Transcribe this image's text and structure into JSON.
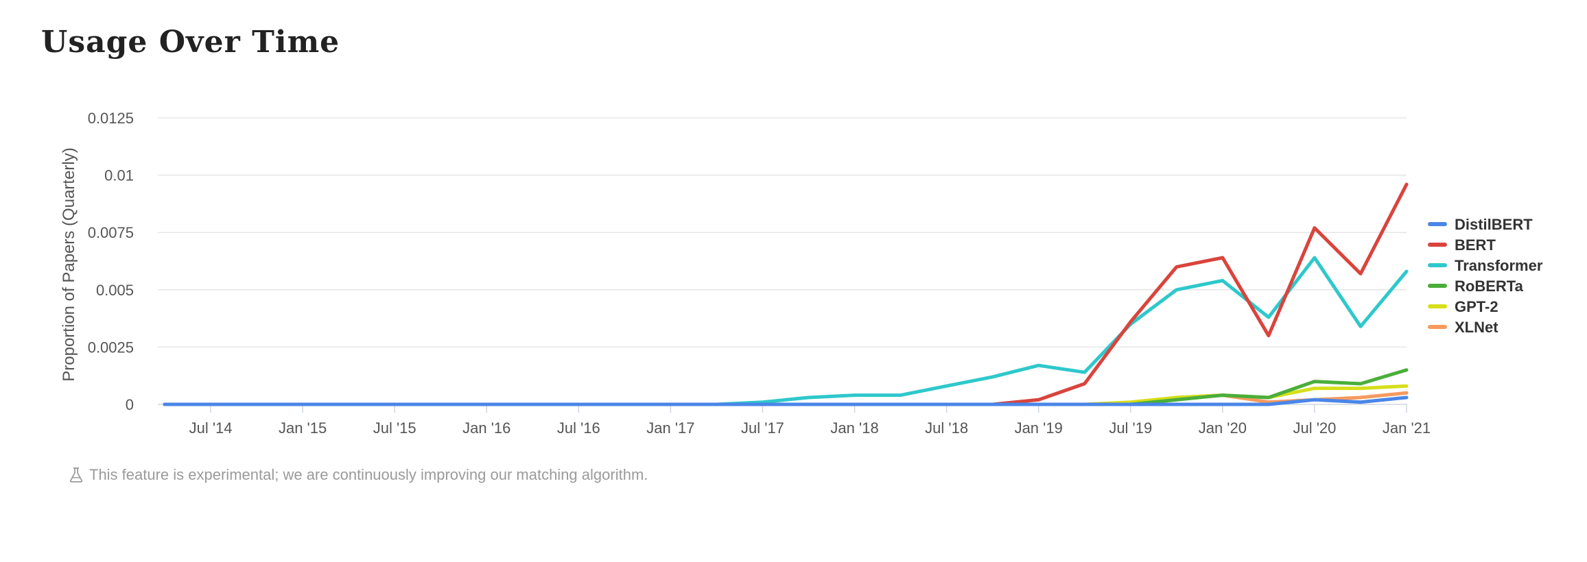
{
  "page": {
    "title": "Usage Over Time"
  },
  "footnote": {
    "text": "This feature is experimental; we are continuously improving our matching algorithm.",
    "icon": "flask-icon"
  },
  "chart_data": {
    "type": "line",
    "title": "",
    "xlabel": "",
    "ylabel": "Proportion of Papers (Quarterly)",
    "ylim": [
      0,
      0.0125
    ],
    "y_ticks": [
      0,
      0.0025,
      0.005,
      0.0075,
      0.01,
      0.0125
    ],
    "y_tick_labels": [
      "0",
      "0.0025",
      "0.005",
      "0.0075",
      "0.01",
      "0.0125"
    ],
    "x_tick_labels": [
      "Jul '14",
      "Jan '15",
      "Jul '15",
      "Jan '16",
      "Jul '16",
      "Jan '17",
      "Jul '17",
      "Jan '18",
      "Jul '18",
      "Jan '19",
      "Jul '19",
      "Jan '20",
      "Jul '20",
      "Jan '21"
    ],
    "grid": "horizontal",
    "legend_position": "right",
    "x": [
      "2014-04",
      "2014-07",
      "2014-10",
      "2015-01",
      "2015-04",
      "2015-07",
      "2015-10",
      "2016-01",
      "2016-04",
      "2016-07",
      "2016-10",
      "2017-01",
      "2017-04",
      "2017-07",
      "2017-10",
      "2018-01",
      "2018-04",
      "2018-07",
      "2018-10",
      "2019-01",
      "2019-04",
      "2019-07",
      "2019-10",
      "2020-01",
      "2020-04",
      "2020-07",
      "2020-10",
      "2021-01"
    ],
    "series": [
      {
        "name": "DistilBERT",
        "color": "#4a86e8",
        "values": [
          0,
          0,
          0,
          0,
          0,
          0,
          0,
          0,
          0,
          0,
          0,
          0,
          0,
          0,
          0,
          0,
          0,
          0,
          0,
          0,
          0,
          0,
          0,
          0,
          0,
          0.0002,
          0.0001,
          0.0003
        ]
      },
      {
        "name": "BERT",
        "color": "#d9443c",
        "values": [
          0,
          0,
          0,
          0,
          0,
          0,
          0,
          0,
          0,
          0,
          0,
          0,
          0,
          0,
          0,
          0,
          0,
          0,
          0,
          0.0002,
          0.0009,
          0.0036,
          0.006,
          0.0064,
          0.003,
          0.0077,
          0.0057,
          0.0096
        ]
      },
      {
        "name": "Transformer",
        "color": "#2ec8cb",
        "values": [
          0,
          0,
          0,
          0,
          0,
          0,
          0,
          0,
          0,
          0,
          0,
          0,
          0,
          0.0001,
          0.0003,
          0.0004,
          0.0004,
          0.0008,
          0.0012,
          0.0017,
          0.0014,
          0.0035,
          0.005,
          0.0054,
          0.0038,
          0.0064,
          0.0034,
          0.0058
        ]
      },
      {
        "name": "RoBERTa",
        "color": "#4aae3a",
        "values": [
          0,
          0,
          0,
          0,
          0,
          0,
          0,
          0,
          0,
          0,
          0,
          0,
          0,
          0,
          0,
          0,
          0,
          0,
          0,
          0,
          0,
          0,
          0.0002,
          0.0004,
          0.0003,
          0.001,
          0.0009,
          0.0015
        ]
      },
      {
        "name": "GPT-2",
        "color": "#d6df1a",
        "values": [
          0,
          0,
          0,
          0,
          0,
          0,
          0,
          0,
          0,
          0,
          0,
          0,
          0,
          0,
          0,
          0,
          0,
          0,
          0,
          0,
          0,
          0.0001,
          0.0003,
          0.0004,
          0.0003,
          0.0007,
          0.0007,
          0.0008
        ]
      },
      {
        "name": "XLNet",
        "color": "#f69a5e",
        "values": [
          0,
          0,
          0,
          0,
          0,
          0,
          0,
          0,
          0,
          0,
          0,
          0,
          0,
          0,
          0,
          0,
          0,
          0,
          0,
          0,
          0,
          0,
          0.0003,
          0.0004,
          0.0001,
          0.0002,
          0.0003,
          0.0005
        ]
      }
    ]
  }
}
